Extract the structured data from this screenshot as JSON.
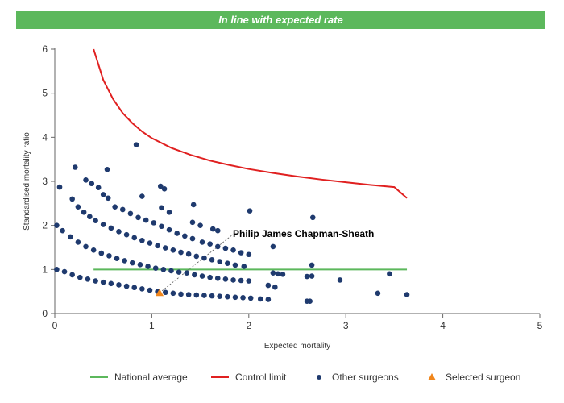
{
  "banner": {
    "text": "In line with expected rate",
    "color": "#5cb85c"
  },
  "chart_data": {
    "type": "scatter",
    "title": "",
    "xlabel": "Expected mortality",
    "ylabel": "Standardised mortality ratio",
    "xlim": [
      0,
      5
    ],
    "ylim": [
      0,
      6
    ],
    "xticks": [
      0,
      1,
      2,
      3,
      4,
      5
    ],
    "yticks": [
      0,
      1,
      2,
      3,
      4,
      5,
      6
    ],
    "grid": false,
    "legend_position": "bottom",
    "series": [
      {
        "name": "National average",
        "kind": "line",
        "color": "#5cb85c",
        "x": [
          0.4,
          3.63
        ],
        "y": [
          1.0,
          1.0
        ]
      },
      {
        "name": "Control limit",
        "kind": "line",
        "color": "#e02020",
        "x": [
          0.4,
          0.5,
          0.6,
          0.7,
          0.8,
          0.9,
          1.0,
          1.2,
          1.4,
          1.6,
          1.8,
          2.0,
          2.25,
          2.5,
          2.75,
          3.0,
          3.25,
          3.5,
          3.63
        ],
        "y": [
          6.0,
          5.3,
          4.87,
          4.55,
          4.32,
          4.13,
          3.98,
          3.76,
          3.6,
          3.47,
          3.37,
          3.28,
          3.19,
          3.11,
          3.04,
          2.98,
          2.92,
          2.87,
          2.62
        ]
      },
      {
        "name": "Other surgeons",
        "kind": "scatter",
        "color": "#1f3a6e",
        "points": [
          [
            0.02,
            1.0
          ],
          [
            0.1,
            0.95
          ],
          [
            0.18,
            0.88
          ],
          [
            0.26,
            0.82
          ],
          [
            0.34,
            0.78
          ],
          [
            0.42,
            0.74
          ],
          [
            0.5,
            0.71
          ],
          [
            0.58,
            0.68
          ],
          [
            0.66,
            0.65
          ],
          [
            0.74,
            0.62
          ],
          [
            0.82,
            0.59
          ],
          [
            0.9,
            0.56
          ],
          [
            0.98,
            0.53
          ],
          [
            1.06,
            0.5
          ],
          [
            1.14,
            0.48
          ],
          [
            1.22,
            0.46
          ],
          [
            1.3,
            0.44
          ],
          [
            1.38,
            0.43
          ],
          [
            1.46,
            0.42
          ],
          [
            1.54,
            0.41
          ],
          [
            1.62,
            0.4
          ],
          [
            1.7,
            0.39
          ],
          [
            1.78,
            0.38
          ],
          [
            1.86,
            0.37
          ],
          [
            1.94,
            0.36
          ],
          [
            2.02,
            0.35
          ],
          [
            2.12,
            0.33
          ],
          [
            2.2,
            0.32
          ],
          [
            2.6,
            0.28
          ],
          [
            2.63,
            0.28
          ],
          [
            0.02,
            2.0
          ],
          [
            0.08,
            1.88
          ],
          [
            0.16,
            1.74
          ],
          [
            0.24,
            1.62
          ],
          [
            0.32,
            1.52
          ],
          [
            0.4,
            1.44
          ],
          [
            0.48,
            1.37
          ],
          [
            0.56,
            1.31
          ],
          [
            0.64,
            1.25
          ],
          [
            0.72,
            1.2
          ],
          [
            0.8,
            1.15
          ],
          [
            0.88,
            1.11
          ],
          [
            0.96,
            1.07
          ],
          [
            1.04,
            1.03
          ],
          [
            1.12,
            1.0
          ],
          [
            1.2,
            0.97
          ],
          [
            1.28,
            0.94
          ],
          [
            1.36,
            0.92
          ],
          [
            1.44,
            0.88
          ],
          [
            1.52,
            0.85
          ],
          [
            1.6,
            0.82
          ],
          [
            1.68,
            0.8
          ],
          [
            1.76,
            0.78
          ],
          [
            1.84,
            0.76
          ],
          [
            1.92,
            0.75
          ],
          [
            2.0,
            0.74
          ],
          [
            2.2,
            0.64
          ],
          [
            2.27,
            0.6
          ],
          [
            2.6,
            0.84
          ],
          [
            2.65,
            0.85
          ],
          [
            2.94,
            0.76
          ],
          [
            0.18,
            2.6
          ],
          [
            0.24,
            2.42
          ],
          [
            0.3,
            2.3
          ],
          [
            0.36,
            2.2
          ],
          [
            0.42,
            2.11
          ],
          [
            0.5,
            2.02
          ],
          [
            0.58,
            1.94
          ],
          [
            0.66,
            1.86
          ],
          [
            0.74,
            1.79
          ],
          [
            0.82,
            1.72
          ],
          [
            0.9,
            1.66
          ],
          [
            0.98,
            1.6
          ],
          [
            1.06,
            1.54
          ],
          [
            1.14,
            1.49
          ],
          [
            1.22,
            1.44
          ],
          [
            1.3,
            1.39
          ],
          [
            1.38,
            1.35
          ],
          [
            1.46,
            1.3
          ],
          [
            1.54,
            1.26
          ],
          [
            1.62,
            1.22
          ],
          [
            1.7,
            1.18
          ],
          [
            1.78,
            1.14
          ],
          [
            1.86,
            1.1
          ],
          [
            1.95,
            1.07
          ],
          [
            2.25,
            0.92
          ],
          [
            2.3,
            0.9
          ],
          [
            2.35,
            0.89
          ],
          [
            0.32,
            3.03
          ],
          [
            0.38,
            2.95
          ],
          [
            0.45,
            2.86
          ],
          [
            0.5,
            2.7
          ],
          [
            0.55,
            2.62
          ],
          [
            0.62,
            2.42
          ],
          [
            0.7,
            2.36
          ],
          [
            0.78,
            2.27
          ],
          [
            0.86,
            2.18
          ],
          [
            0.94,
            2.12
          ],
          [
            1.02,
            2.06
          ],
          [
            1.1,
            1.98
          ],
          [
            1.18,
            1.9
          ],
          [
            1.26,
            1.82
          ],
          [
            1.34,
            1.76
          ],
          [
            1.42,
            1.7
          ],
          [
            1.52,
            1.62
          ],
          [
            1.6,
            1.58
          ],
          [
            1.68,
            1.52
          ],
          [
            1.76,
            1.48
          ],
          [
            1.84,
            1.44
          ],
          [
            1.92,
            1.38
          ],
          [
            2.0,
            1.34
          ],
          [
            2.25,
            1.52
          ],
          [
            2.65,
            1.1
          ],
          [
            0.05,
            2.87
          ],
          [
            0.21,
            3.32
          ],
          [
            0.54,
            3.27
          ],
          [
            0.84,
            3.83
          ],
          [
            0.9,
            2.66
          ],
          [
            1.09,
            2.89
          ],
          [
            1.13,
            2.83
          ],
          [
            1.1,
            2.4
          ],
          [
            1.18,
            2.3
          ],
          [
            1.43,
            2.47
          ],
          [
            1.42,
            2.07
          ],
          [
            1.5,
            2.0
          ],
          [
            1.63,
            1.92
          ],
          [
            1.68,
            1.88
          ],
          [
            2.01,
            2.33
          ],
          [
            2.66,
            2.18
          ],
          [
            3.33,
            0.46
          ],
          [
            3.45,
            0.9
          ],
          [
            3.63,
            0.43
          ]
        ]
      },
      {
        "name": "Selected surgeon",
        "kind": "scatter",
        "color": "#f0861c",
        "points": [
          [
            1.08,
            0.47
          ]
        ]
      }
    ],
    "annotations": [
      {
        "text": "Philip James Chapman-Sheath",
        "x": 1.08,
        "y": 0.47
      }
    ]
  }
}
